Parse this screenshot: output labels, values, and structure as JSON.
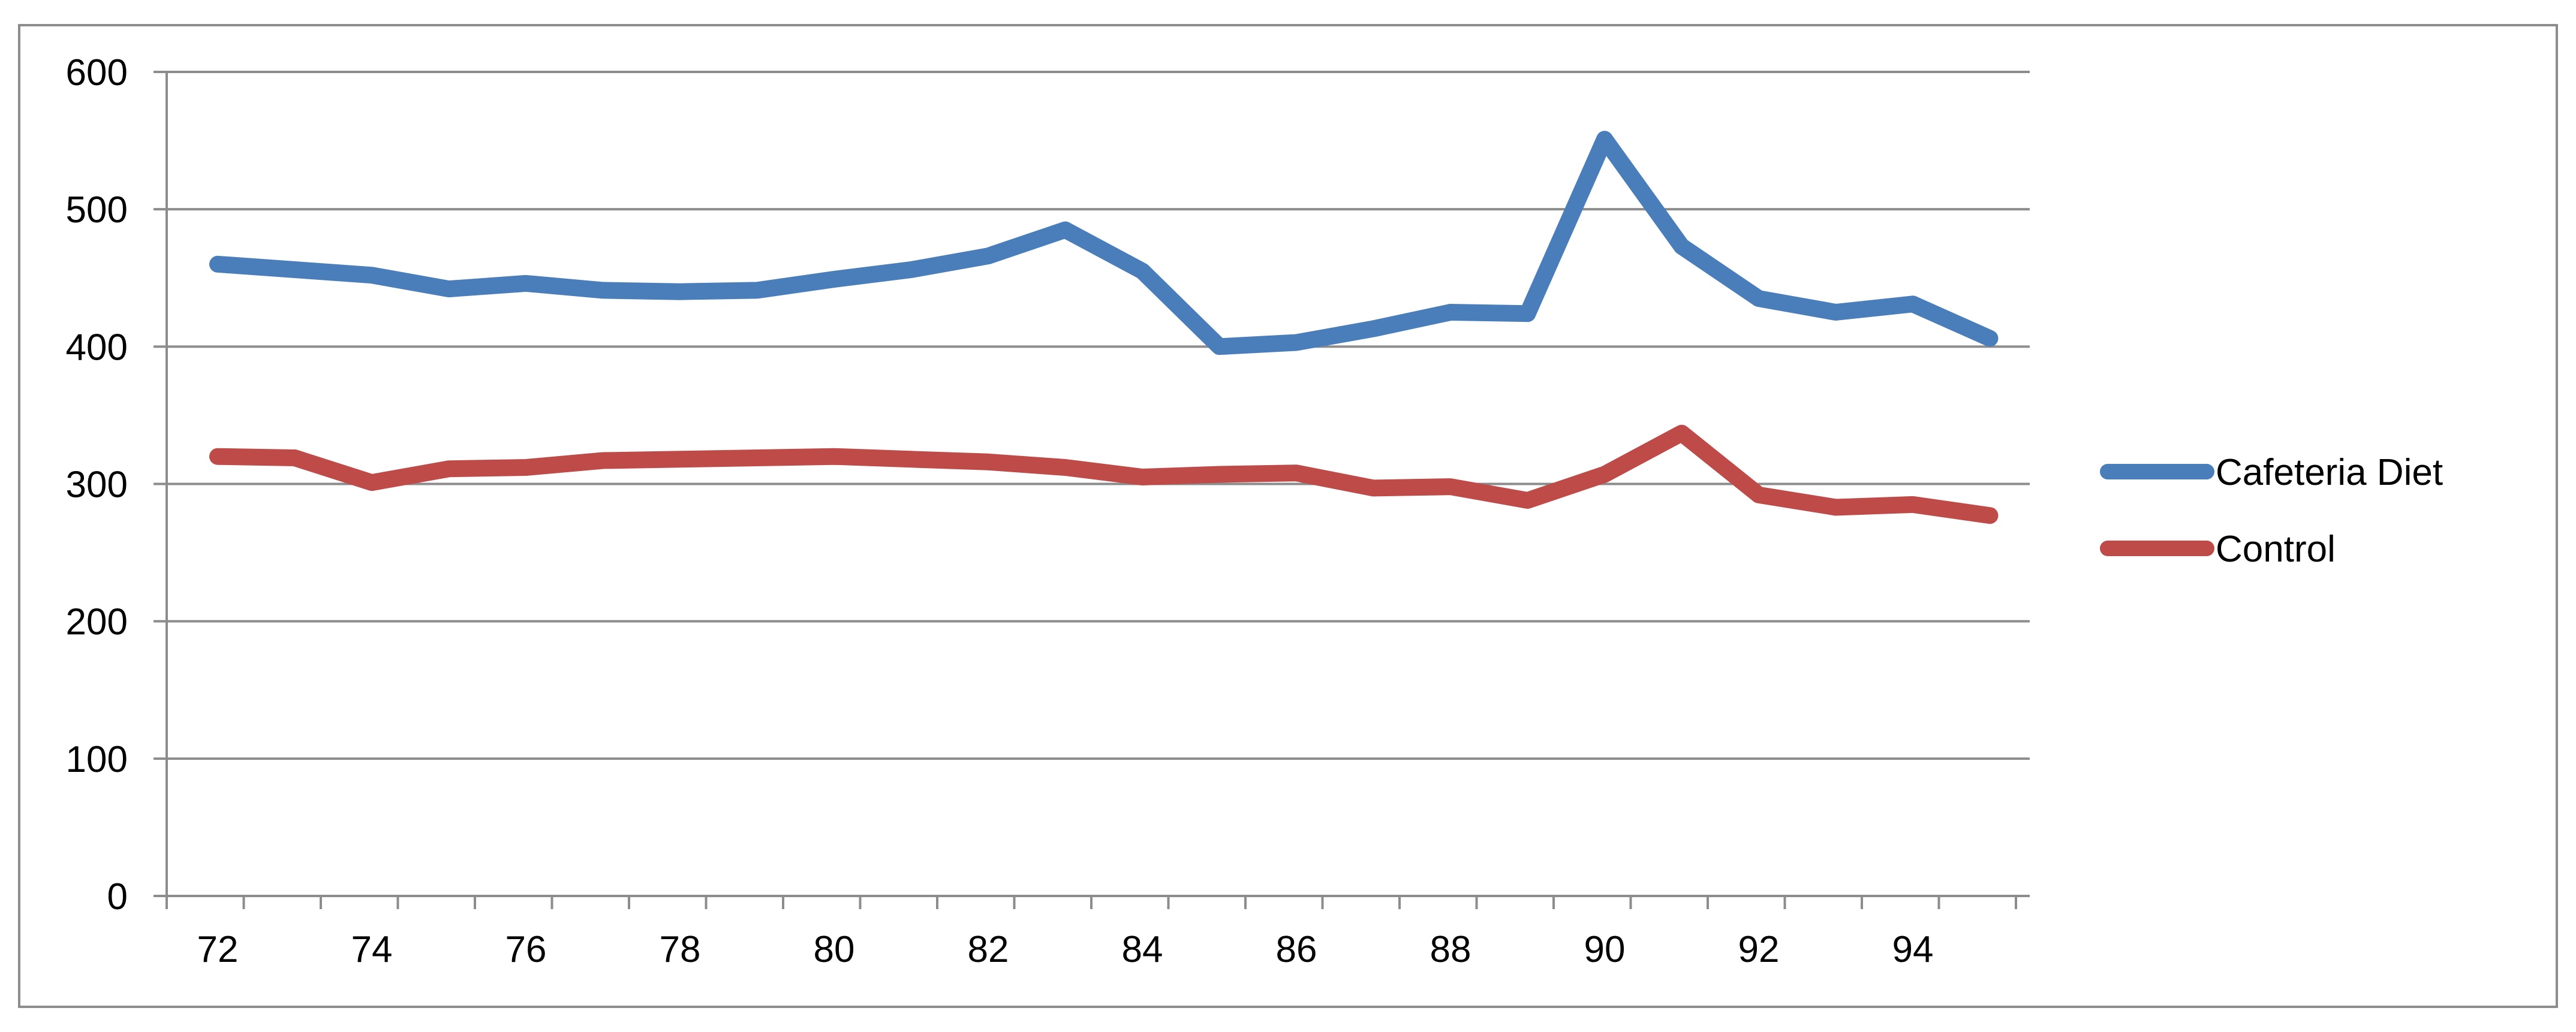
{
  "chart_data": {
    "type": "line",
    "title": "",
    "xlabel": "",
    "ylabel": "",
    "x": [
      72,
      73,
      74,
      75,
      76,
      77,
      78,
      79,
      80,
      81,
      82,
      83,
      84,
      85,
      86,
      87,
      88,
      89,
      90,
      91,
      92,
      93,
      94,
      95
    ],
    "x_tick_labels": [
      "72",
      "74",
      "76",
      "78",
      "80",
      "82",
      "84",
      "86",
      "88",
      "90",
      "92",
      "94"
    ],
    "y_tick_labels": [
      "0",
      "100",
      "200",
      "300",
      "400",
      "500",
      "600"
    ],
    "ylim": [
      0,
      600
    ],
    "grid": true,
    "legend_position": "right",
    "series": [
      {
        "name": "Cafeteria Diet",
        "color": "#4a7ebb",
        "values": [
          460,
          456,
          452,
          442,
          446,
          441,
          440,
          441,
          449,
          456,
          466,
          485,
          455,
          400,
          403,
          413,
          425,
          424,
          551,
          473,
          435,
          425,
          431,
          406
        ]
      },
      {
        "name": "Control",
        "color": "#be4b48",
        "values": [
          320,
          319,
          301,
          311,
          312,
          317,
          318,
          319,
          320,
          318,
          316,
          312,
          305,
          307,
          308,
          297,
          298,
          288,
          307,
          337,
          292,
          283,
          285,
          277
        ]
      }
    ]
  }
}
